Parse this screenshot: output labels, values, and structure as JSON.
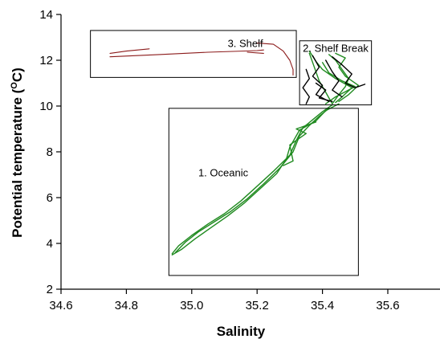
{
  "chart_data": {
    "type": "line",
    "xlabel": "Salinity",
    "ylabel_main": "Potential temperature (",
    "ylabel_sup": "O",
    "ylabel_end": "C)",
    "xlim": [
      34.6,
      35.7
    ],
    "ylim": [
      2,
      14
    ],
    "x_ticks": [
      "34.6",
      "34.8",
      "35.0",
      "35.2",
      "35.4",
      "35.6"
    ],
    "x_tick_values": [
      34.6,
      34.8,
      35.0,
      35.2,
      35.4,
      35.6
    ],
    "y_ticks": [
      "2",
      "4",
      "6",
      "8",
      "10",
      "12",
      "14"
    ],
    "y_tick_values": [
      2,
      4,
      6,
      8,
      10,
      12,
      14
    ],
    "grid": false,
    "colors": {
      "oceanic": "#1f8a1f",
      "shelf_break": "#1f8a1f",
      "shelf_break_dark": "#000000",
      "shelf": "#8b1a1a"
    },
    "regions": [
      {
        "label": "3. Shelf",
        "x_range": [
          34.69,
          35.32
        ],
        "y_range": [
          11.25,
          13.3
        ],
        "label_at": [
          35.11,
          12.75
        ]
      },
      {
        "label": "2. Shelf Break",
        "x_range": [
          35.33,
          35.55
        ],
        "y_range": [
          10.05,
          12.85
        ],
        "label_at": [
          35.34,
          12.55
        ]
      },
      {
        "label": "1. Oceanic",
        "x_range": [
          34.93,
          35.51
        ],
        "y_range": [
          2.6,
          9.9
        ],
        "label_at": [
          35.02,
          7.1
        ]
      }
    ],
    "series": [
      {
        "region": "oceanic",
        "color": "#1f8a1f",
        "points": [
          [
            34.94,
            3.55
          ],
          [
            34.96,
            3.9
          ],
          [
            35.0,
            4.35
          ],
          [
            35.05,
            4.85
          ],
          [
            35.1,
            5.3
          ],
          [
            35.15,
            5.85
          ],
          [
            35.2,
            6.5
          ],
          [
            35.25,
            7.15
          ],
          [
            35.3,
            7.85
          ],
          [
            35.32,
            8.5
          ],
          [
            35.34,
            9.05
          ],
          [
            35.37,
            9.4
          ],
          [
            35.4,
            9.75
          ],
          [
            35.43,
            10.05
          ]
        ]
      },
      {
        "region": "oceanic",
        "color": "#1f8a1f",
        "points": [
          [
            34.95,
            3.6
          ],
          [
            34.98,
            4.05
          ],
          [
            35.02,
            4.5
          ],
          [
            35.07,
            4.95
          ],
          [
            35.12,
            5.4
          ],
          [
            35.17,
            5.95
          ],
          [
            35.22,
            6.6
          ],
          [
            35.27,
            7.3
          ],
          [
            35.31,
            8.0
          ],
          [
            35.33,
            8.7
          ],
          [
            35.36,
            9.15
          ],
          [
            35.39,
            9.55
          ],
          [
            35.42,
            9.9
          ]
        ]
      },
      {
        "region": "oceanic",
        "color": "#1f8a1f",
        "points": [
          [
            34.94,
            3.5
          ],
          [
            34.97,
            3.75
          ],
          [
            35.01,
            4.2
          ],
          [
            35.06,
            4.7
          ],
          [
            35.11,
            5.2
          ],
          [
            35.16,
            5.75
          ],
          [
            35.21,
            6.4
          ],
          [
            35.26,
            7.05
          ],
          [
            35.29,
            7.7
          ],
          [
            35.3,
            8.2
          ],
          [
            35.33,
            8.95
          ],
          [
            35.38,
            9.35
          ],
          [
            35.41,
            9.8
          ],
          [
            35.45,
            10.1
          ]
        ]
      },
      {
        "region": "oceanic",
        "color": "#1f8a1f",
        "points": [
          [
            35.28,
            7.4
          ],
          [
            35.31,
            7.6
          ],
          [
            35.3,
            8.3
          ],
          [
            35.35,
            8.8
          ],
          [
            35.32,
            9.0
          ],
          [
            35.38,
            9.3
          ]
        ]
      },
      {
        "region": "shelf_break",
        "color": "#1f8a1f",
        "points": [
          [
            35.43,
            10.1
          ],
          [
            35.45,
            10.5
          ],
          [
            35.47,
            10.85
          ],
          [
            35.48,
            11.2
          ],
          [
            35.46,
            11.6
          ],
          [
            35.44,
            12.0
          ],
          [
            35.42,
            12.25
          ]
        ]
      },
      {
        "region": "shelf_break",
        "color": "#1f8a1f",
        "points": [
          [
            35.43,
            10.1
          ],
          [
            35.41,
            10.6
          ],
          [
            35.39,
            11.1
          ],
          [
            35.38,
            11.5
          ],
          [
            35.37,
            11.9
          ],
          [
            35.36,
            12.3
          ]
        ]
      },
      {
        "region": "shelf_break",
        "color": "#1f8a1f",
        "points": [
          [
            35.44,
            10.15
          ],
          [
            35.46,
            10.4
          ],
          [
            35.49,
            10.8
          ],
          [
            35.44,
            11.2
          ],
          [
            35.4,
            11.6
          ],
          [
            35.38,
            11.95
          ],
          [
            35.36,
            12.4
          ]
        ]
      },
      {
        "region": "shelf_break",
        "color": "#1f8a1f",
        "points": [
          [
            35.41,
            10.1
          ],
          [
            35.44,
            10.4
          ],
          [
            35.5,
            10.85
          ],
          [
            35.46,
            11.1
          ],
          [
            35.42,
            11.45
          ],
          [
            35.4,
            11.9
          ]
        ]
      },
      {
        "region": "shelf_break",
        "color": "#1f8a1f",
        "points": [
          [
            35.45,
            10.2
          ],
          [
            35.48,
            10.5
          ],
          [
            35.51,
            10.9
          ],
          [
            35.47,
            11.3
          ],
          [
            35.45,
            11.7
          ],
          [
            35.47,
            12.1
          ],
          [
            35.44,
            12.3
          ]
        ]
      },
      {
        "region": "shelf_break",
        "color": "#000000",
        "points": [
          [
            35.35,
            11.6
          ],
          [
            35.36,
            11.2
          ],
          [
            35.34,
            10.8
          ],
          [
            35.36,
            10.4
          ],
          [
            35.35,
            10.1
          ]
        ]
      },
      {
        "region": "shelf_break",
        "color": "#000000",
        "points": [
          [
            35.37,
            12.2
          ],
          [
            35.39,
            11.7
          ],
          [
            35.37,
            11.3
          ],
          [
            35.4,
            10.9
          ],
          [
            35.38,
            10.5
          ],
          [
            35.42,
            10.2
          ]
        ]
      },
      {
        "region": "shelf_break",
        "color": "#000000",
        "points": [
          [
            35.41,
            12.0
          ],
          [
            35.43,
            11.5
          ],
          [
            35.45,
            11.1
          ],
          [
            35.43,
            10.7
          ],
          [
            35.46,
            10.4
          ]
        ]
      },
      {
        "region": "shelf_break",
        "color": "#000000",
        "points": [
          [
            35.43,
            12.15
          ],
          [
            35.46,
            11.8
          ],
          [
            35.49,
            11.4
          ],
          [
            35.47,
            11.0
          ],
          [
            35.5,
            10.8
          ],
          [
            35.53,
            10.95
          ]
        ]
      },
      {
        "region": "shelf_break",
        "color": "#000000",
        "points": [
          [
            35.38,
            11.0
          ],
          [
            35.41,
            10.7
          ],
          [
            35.39,
            10.35
          ],
          [
            35.43,
            10.2
          ]
        ]
      },
      {
        "region": "shelf",
        "color": "#8b1a1a",
        "points": [
          [
            34.75,
            12.15
          ],
          [
            34.9,
            12.25
          ],
          [
            35.05,
            12.35
          ],
          [
            35.2,
            12.42
          ],
          [
            35.22,
            12.45
          ]
        ]
      },
      {
        "region": "shelf",
        "color": "#8b1a1a",
        "points": [
          [
            34.75,
            12.3
          ],
          [
            34.8,
            12.4
          ],
          [
            34.87,
            12.5
          ]
        ]
      },
      {
        "region": "shelf",
        "color": "#8b1a1a",
        "points": [
          [
            35.17,
            12.35
          ],
          [
            35.22,
            12.3
          ]
        ]
      },
      {
        "region": "shelf",
        "color": "#8b1a1a",
        "points": [
          [
            35.2,
            12.75
          ],
          [
            35.25,
            12.7
          ],
          [
            35.28,
            12.4
          ],
          [
            35.3,
            12.0
          ],
          [
            35.31,
            11.6
          ],
          [
            35.31,
            11.35
          ]
        ]
      }
    ]
  }
}
